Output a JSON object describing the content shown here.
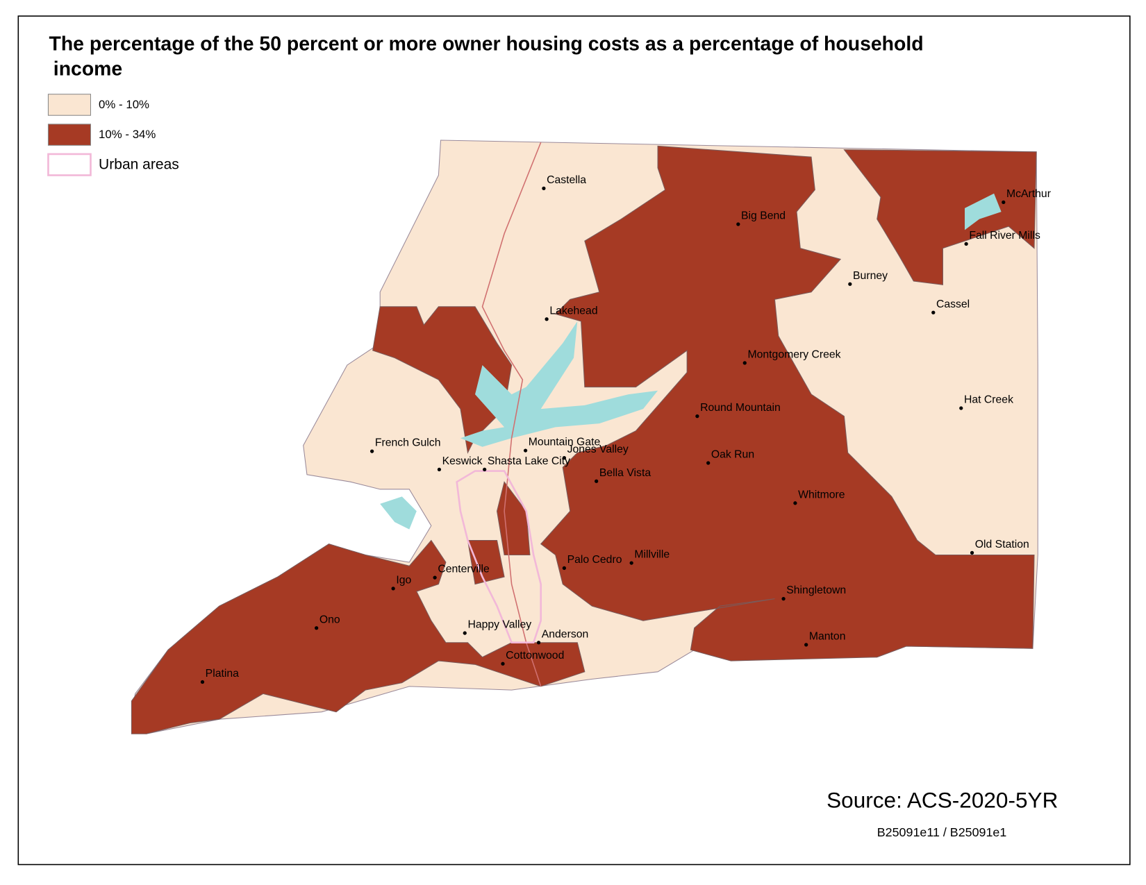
{
  "header": {
    "title_lines": [
      "The percentage of the 50 percent or more owner housing costs as a percentage of household",
      "income"
    ]
  },
  "legend": [
    {
      "label": "0% - 10%",
      "color": "#fae6d2"
    },
    {
      "label": "10% - 34%",
      "color": "#a63a24"
    },
    {
      "label": "Urban areas",
      "color": "#f2b8d8"
    }
  ],
  "places": [
    "Castella",
    "Big Bend",
    "McArthur",
    "Fall River Mills",
    "Burney",
    "Cassel",
    "Lakehead",
    "Montgomery Creek",
    "Hat Creek",
    "Round Mountain",
    "French Gulch",
    "Mountain Gate",
    "Jones Valley",
    "Keswick",
    "Shasta Lake City",
    "Oak Run",
    "Bella Vista",
    "Whitmore",
    "Old Station",
    "Palo Cedro",
    "Millville",
    "Centerville",
    "Igo",
    "Shingletown",
    "Ono",
    "Happy Valley",
    "Anderson",
    "Manton",
    "Cottonwood",
    "Platina"
  ],
  "footer": {
    "source": "Source: ACS-2020-5YR",
    "code": "B25091e11 / B25091e1"
  }
}
